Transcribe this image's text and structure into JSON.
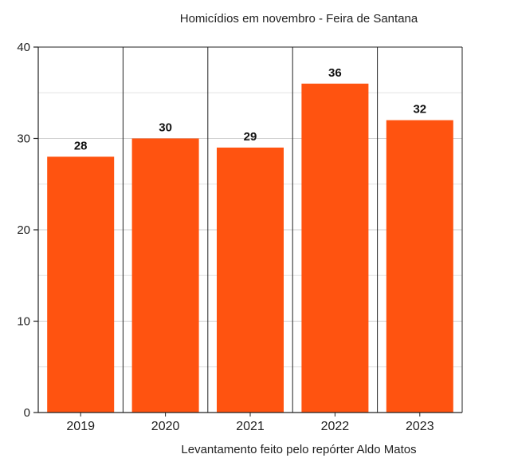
{
  "chart_data": {
    "type": "bar",
    "title": "Homicídios em novembro - Feira de Santana",
    "categories": [
      "2019",
      "2020",
      "2021",
      "2022",
      "2023"
    ],
    "values": [
      28,
      30,
      29,
      36,
      32
    ],
    "data_labels": [
      "28",
      "30",
      "29",
      "36",
      "32"
    ],
    "xlabel": "Levantamento feito pelo repórter Aldo Matos",
    "ylabel": "",
    "ylim": [
      0,
      40
    ],
    "yticks": [
      "0",
      "10",
      "20",
      "30",
      "40"
    ],
    "grid": true,
    "bar_color": "#ff5310"
  }
}
